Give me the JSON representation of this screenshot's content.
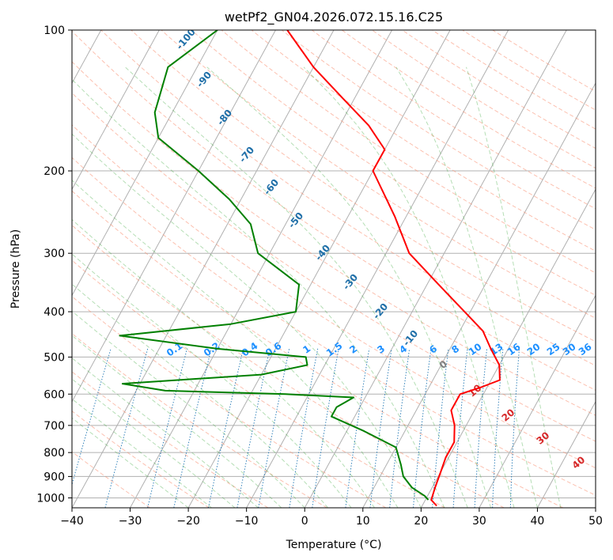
{
  "chart_data": {
    "type": "line",
    "chart_kind": "skew-T log-P sounding",
    "title": "wetPf2_GN04.2026.072.15.16.C25",
    "xlabel": "Temperature (°C)",
    "ylabel": "Pressure (hPa)",
    "xlim": [
      -40,
      50
    ],
    "ylim": [
      1050,
      100
    ],
    "y_scale": "log",
    "x_ticks": [
      "−40",
      "−30",
      "−20",
      "−10",
      "0",
      "10",
      "20",
      "30",
      "40",
      "50"
    ],
    "y_ticks": [
      "100",
      "200",
      "300",
      "400",
      "500",
      "600",
      "700",
      "800",
      "900",
      "1000"
    ],
    "grid": true,
    "series": [
      {
        "color": "#ff0000",
        "points": [
          [
            22.5,
            1040
          ],
          [
            21.0,
            1010
          ],
          [
            20.5,
            950
          ],
          [
            20.0,
            880
          ],
          [
            19.5,
            820
          ],
          [
            19.5,
            760
          ],
          [
            18.0,
            700
          ],
          [
            16.0,
            650
          ],
          [
            16.0,
            600
          ],
          [
            19.0,
            580
          ],
          [
            21.5,
            560
          ],
          [
            20.0,
            520
          ],
          [
            17.0,
            480
          ],
          [
            14.0,
            440
          ],
          [
            9.0,
            400
          ],
          [
            2.0,
            350
          ],
          [
            -6.0,
            300
          ],
          [
            -12.0,
            250
          ],
          [
            -20.0,
            200
          ],
          [
            -20.0,
            180
          ],
          [
            -25.0,
            160
          ],
          [
            -32.0,
            140
          ],
          [
            -40.0,
            120
          ],
          [
            -48.0,
            100
          ]
        ]
      },
      {
        "color": "#008000",
        "points": [
          [
            20.5,
            1010
          ],
          [
            19.5,
            990
          ],
          [
            16.5,
            950
          ],
          [
            14.0,
            900
          ],
          [
            12.5,
            850
          ],
          [
            10.0,
            780
          ],
          [
            3.0,
            720
          ],
          [
            -4.0,
            670
          ],
          [
            -4.0,
            640
          ],
          [
            -2.0,
            610
          ],
          [
            -14.0,
            600
          ],
          [
            -35.0,
            590
          ],
          [
            -43.0,
            570
          ],
          [
            -20.0,
            545
          ],
          [
            -13.0,
            520
          ],
          [
            -14.0,
            500
          ],
          [
            -30.0,
            480
          ],
          [
            -48.0,
            450
          ],
          [
            -30.0,
            425
          ],
          [
            -20.0,
            400
          ],
          [
            -22.0,
            350
          ],
          [
            -32.0,
            300
          ],
          [
            -36.0,
            260
          ],
          [
            -42.0,
            230
          ],
          [
            -50.0,
            200
          ],
          [
            -60.0,
            170
          ],
          [
            -63.0,
            150
          ],
          [
            -65.0,
            120
          ],
          [
            -60.0,
            100
          ]
        ]
      }
    ],
    "dry_adiabat_labels": [
      "-100",
      "-90",
      "-80",
      "-70",
      "-60",
      "-50",
      "-40",
      "-30",
      "-20",
      "-10"
    ],
    "mixing_ratio_labels": [
      "0.1",
      "0.2",
      "0.4",
      "0.6",
      "1",
      "1.5",
      "2",
      "3",
      "4",
      "6",
      "8",
      "10",
      "13",
      "16",
      "20",
      "25",
      "30",
      "36"
    ],
    "moist_adiabat_labels": [
      "0",
      "10",
      "20",
      "30",
      "40"
    ]
  }
}
